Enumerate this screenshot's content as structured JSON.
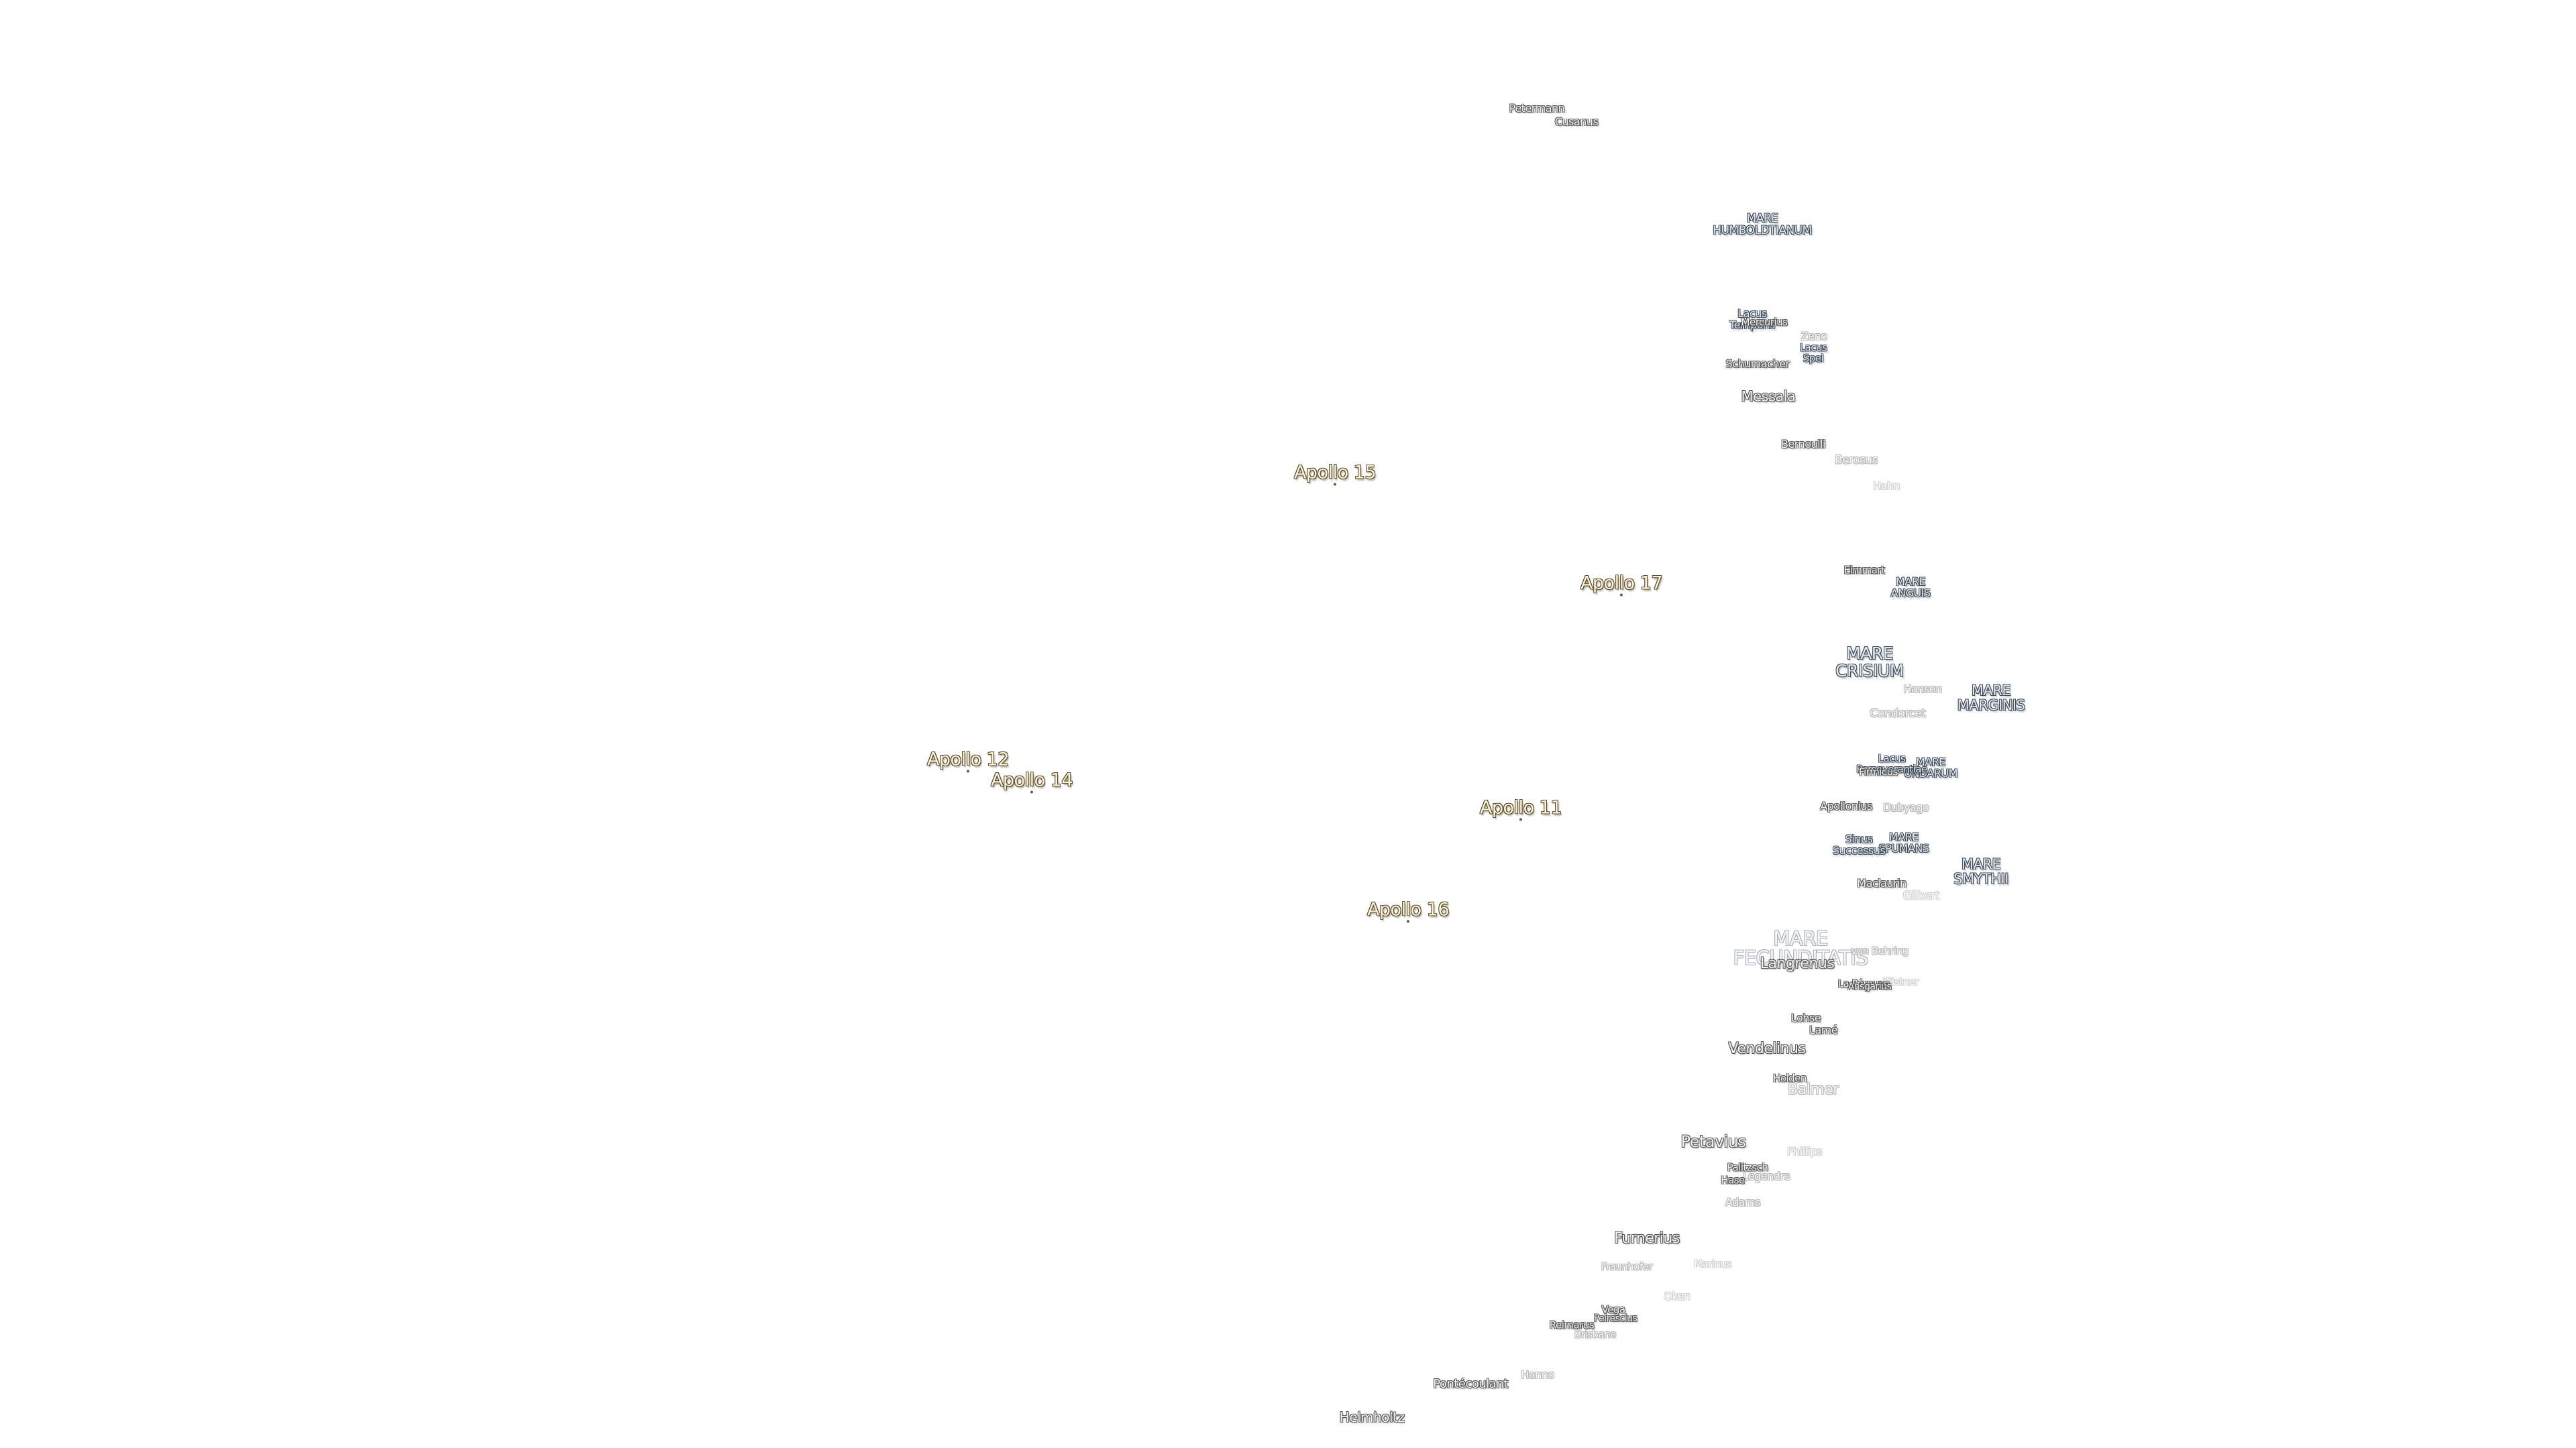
{
  "map": {
    "apollo_sites": [
      {
        "id": "apollo-15",
        "label": "Apollo 15"
      },
      {
        "id": "apollo-17",
        "label": "Apollo 17"
      },
      {
        "id": "apollo-12",
        "label": "Apollo 12"
      },
      {
        "id": "apollo-14",
        "label": "Apollo 14"
      },
      {
        "id": "apollo-11",
        "label": "Apollo 11"
      },
      {
        "id": "apollo-16",
        "label": "Apollo 16"
      }
    ],
    "maria": [
      {
        "id": "mare-humboldtianum",
        "label": "MARE\nHUMBOLDTIANUM"
      },
      {
        "id": "mare-anguis",
        "label": "MARE\nANGUIS"
      },
      {
        "id": "mare-crisium",
        "label": "MARE\nCRISIUM"
      },
      {
        "id": "mare-marginis",
        "label": "MARE\nMARGINIS"
      },
      {
        "id": "mare-undarum",
        "label": "MARE\nUNDARUM"
      },
      {
        "id": "mare-spumans",
        "label": "MARE\nSPUMANS"
      },
      {
        "id": "mare-smythii",
        "label": "MARE\nSMYTHII"
      },
      {
        "id": "mare-fecunditatis",
        "label": "MARE\nFECUNDITATIS"
      },
      {
        "id": "lacus-temporis",
        "label": "Lacus\nTemporis"
      },
      {
        "id": "lacus-spei",
        "label": "Lacus\nSpei"
      },
      {
        "id": "lacus-perseverantiae",
        "label": "Lacus\nPerseverantiae"
      },
      {
        "id": "sinus-successus",
        "label": "Sinus\nSuccessus"
      }
    ],
    "craters": [
      {
        "id": "petermann",
        "label": "Petermann"
      },
      {
        "id": "cusanus",
        "label": "Cusanus"
      },
      {
        "id": "mercurius",
        "label": "Mercurius"
      },
      {
        "id": "zeno",
        "label": "Zeno"
      },
      {
        "id": "schumacher",
        "label": "Schumacher"
      },
      {
        "id": "messala",
        "label": "Messala"
      },
      {
        "id": "bernoulli",
        "label": "Bernoulli"
      },
      {
        "id": "berosus",
        "label": "Berosus"
      },
      {
        "id": "hahn",
        "label": "Hahn"
      },
      {
        "id": "eimmart",
        "label": "Eimmart"
      },
      {
        "id": "hansen",
        "label": "Hansen"
      },
      {
        "id": "condorcet",
        "label": "Condorcet"
      },
      {
        "id": "firmicus",
        "label": "Firmicus"
      },
      {
        "id": "apollonius",
        "label": "Apollonius"
      },
      {
        "id": "dubyago",
        "label": "Dubyago"
      },
      {
        "id": "maclaurin",
        "label": "Maclaurin"
      },
      {
        "id": "gilbert",
        "label": "Gilbert"
      },
      {
        "id": "von-behring",
        "label": "von Behring"
      },
      {
        "id": "langrenus",
        "label": "Langrenus"
      },
      {
        "id": "kastner",
        "label": "Kästner"
      },
      {
        "id": "la-peyrouse",
        "label": "La Pérouse"
      },
      {
        "id": "ansgarius",
        "label": "Ansgarius"
      },
      {
        "id": "lohse",
        "label": "Lohse"
      },
      {
        "id": "lame",
        "label": "Lamé"
      },
      {
        "id": "vendelinus",
        "label": "Vendelinus"
      },
      {
        "id": "holden",
        "label": "Holden"
      },
      {
        "id": "balmer",
        "label": "Balmer"
      },
      {
        "id": "petavius",
        "label": "Petavius"
      },
      {
        "id": "phillips",
        "label": "Phillips"
      },
      {
        "id": "palitzsch",
        "label": "Palitzsch"
      },
      {
        "id": "legendre",
        "label": "Legendre"
      },
      {
        "id": "hase",
        "label": "Hase"
      },
      {
        "id": "adams",
        "label": "Adams"
      },
      {
        "id": "furnerius",
        "label": "Furnerius"
      },
      {
        "id": "fraunhofer",
        "label": "Fraunhofer"
      },
      {
        "id": "marinus",
        "label": "Marinus"
      },
      {
        "id": "oken",
        "label": "Oken"
      },
      {
        "id": "vega",
        "label": "Vega"
      },
      {
        "id": "peirescius",
        "label": "Peirescius"
      },
      {
        "id": "reimarus",
        "label": "Reimarus"
      },
      {
        "id": "brisbane",
        "label": "Brisbane"
      },
      {
        "id": "hanno",
        "label": "Hanno"
      },
      {
        "id": "pontecoulant",
        "label": "Pontécoulant"
      },
      {
        "id": "helmholtz",
        "label": "Helmholtz"
      }
    ]
  }
}
